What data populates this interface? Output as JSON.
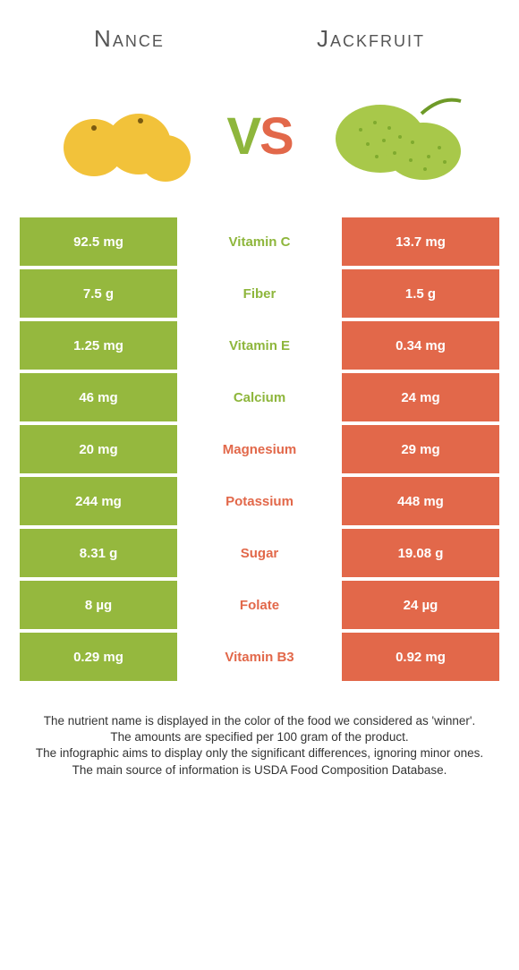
{
  "header": {
    "left_title": "Nance",
    "right_title": "Jackfruit"
  },
  "vs": {
    "v": "V",
    "s": "S"
  },
  "colors": {
    "left_bg": "#95b83e",
    "right_bg": "#e2684a",
    "left_text": "#8eb63c",
    "right_text": "#e2684a"
  },
  "nutrients": [
    {
      "left": "92.5 mg",
      "label": "Vitamin C",
      "right": "13.7 mg",
      "winner": "left"
    },
    {
      "left": "7.5 g",
      "label": "Fiber",
      "right": "1.5 g",
      "winner": "left"
    },
    {
      "left": "1.25 mg",
      "label": "Vitamin E",
      "right": "0.34 mg",
      "winner": "left"
    },
    {
      "left": "46 mg",
      "label": "Calcium",
      "right": "24 mg",
      "winner": "left"
    },
    {
      "left": "20 mg",
      "label": "Magnesium",
      "right": "29 mg",
      "winner": "right"
    },
    {
      "left": "244 mg",
      "label": "Potassium",
      "right": "448 mg",
      "winner": "right"
    },
    {
      "left": "8.31 g",
      "label": "Sugar",
      "right": "19.08 g",
      "winner": "right"
    },
    {
      "left": "8 µg",
      "label": "Folate",
      "right": "24 µg",
      "winner": "right"
    },
    {
      "left": "0.29 mg",
      "label": "Vitamin B3",
      "right": "0.92 mg",
      "winner": "right"
    }
  ],
  "footer": {
    "line1": "The nutrient name is displayed in the color of the food we considered as 'winner'.",
    "line2": "The amounts are specified per 100 gram of the product.",
    "line3": "The infographic aims to display only the significant differences, ignoring minor ones.",
    "line4": "The main source of information is USDA Food Composition Database."
  },
  "illustrations": {
    "nance": {
      "fill": "#f2c23a",
      "stroke": "#d19e1a"
    },
    "jackfruit": {
      "fill": "#a8c84a",
      "stroke": "#7faa2e"
    }
  }
}
